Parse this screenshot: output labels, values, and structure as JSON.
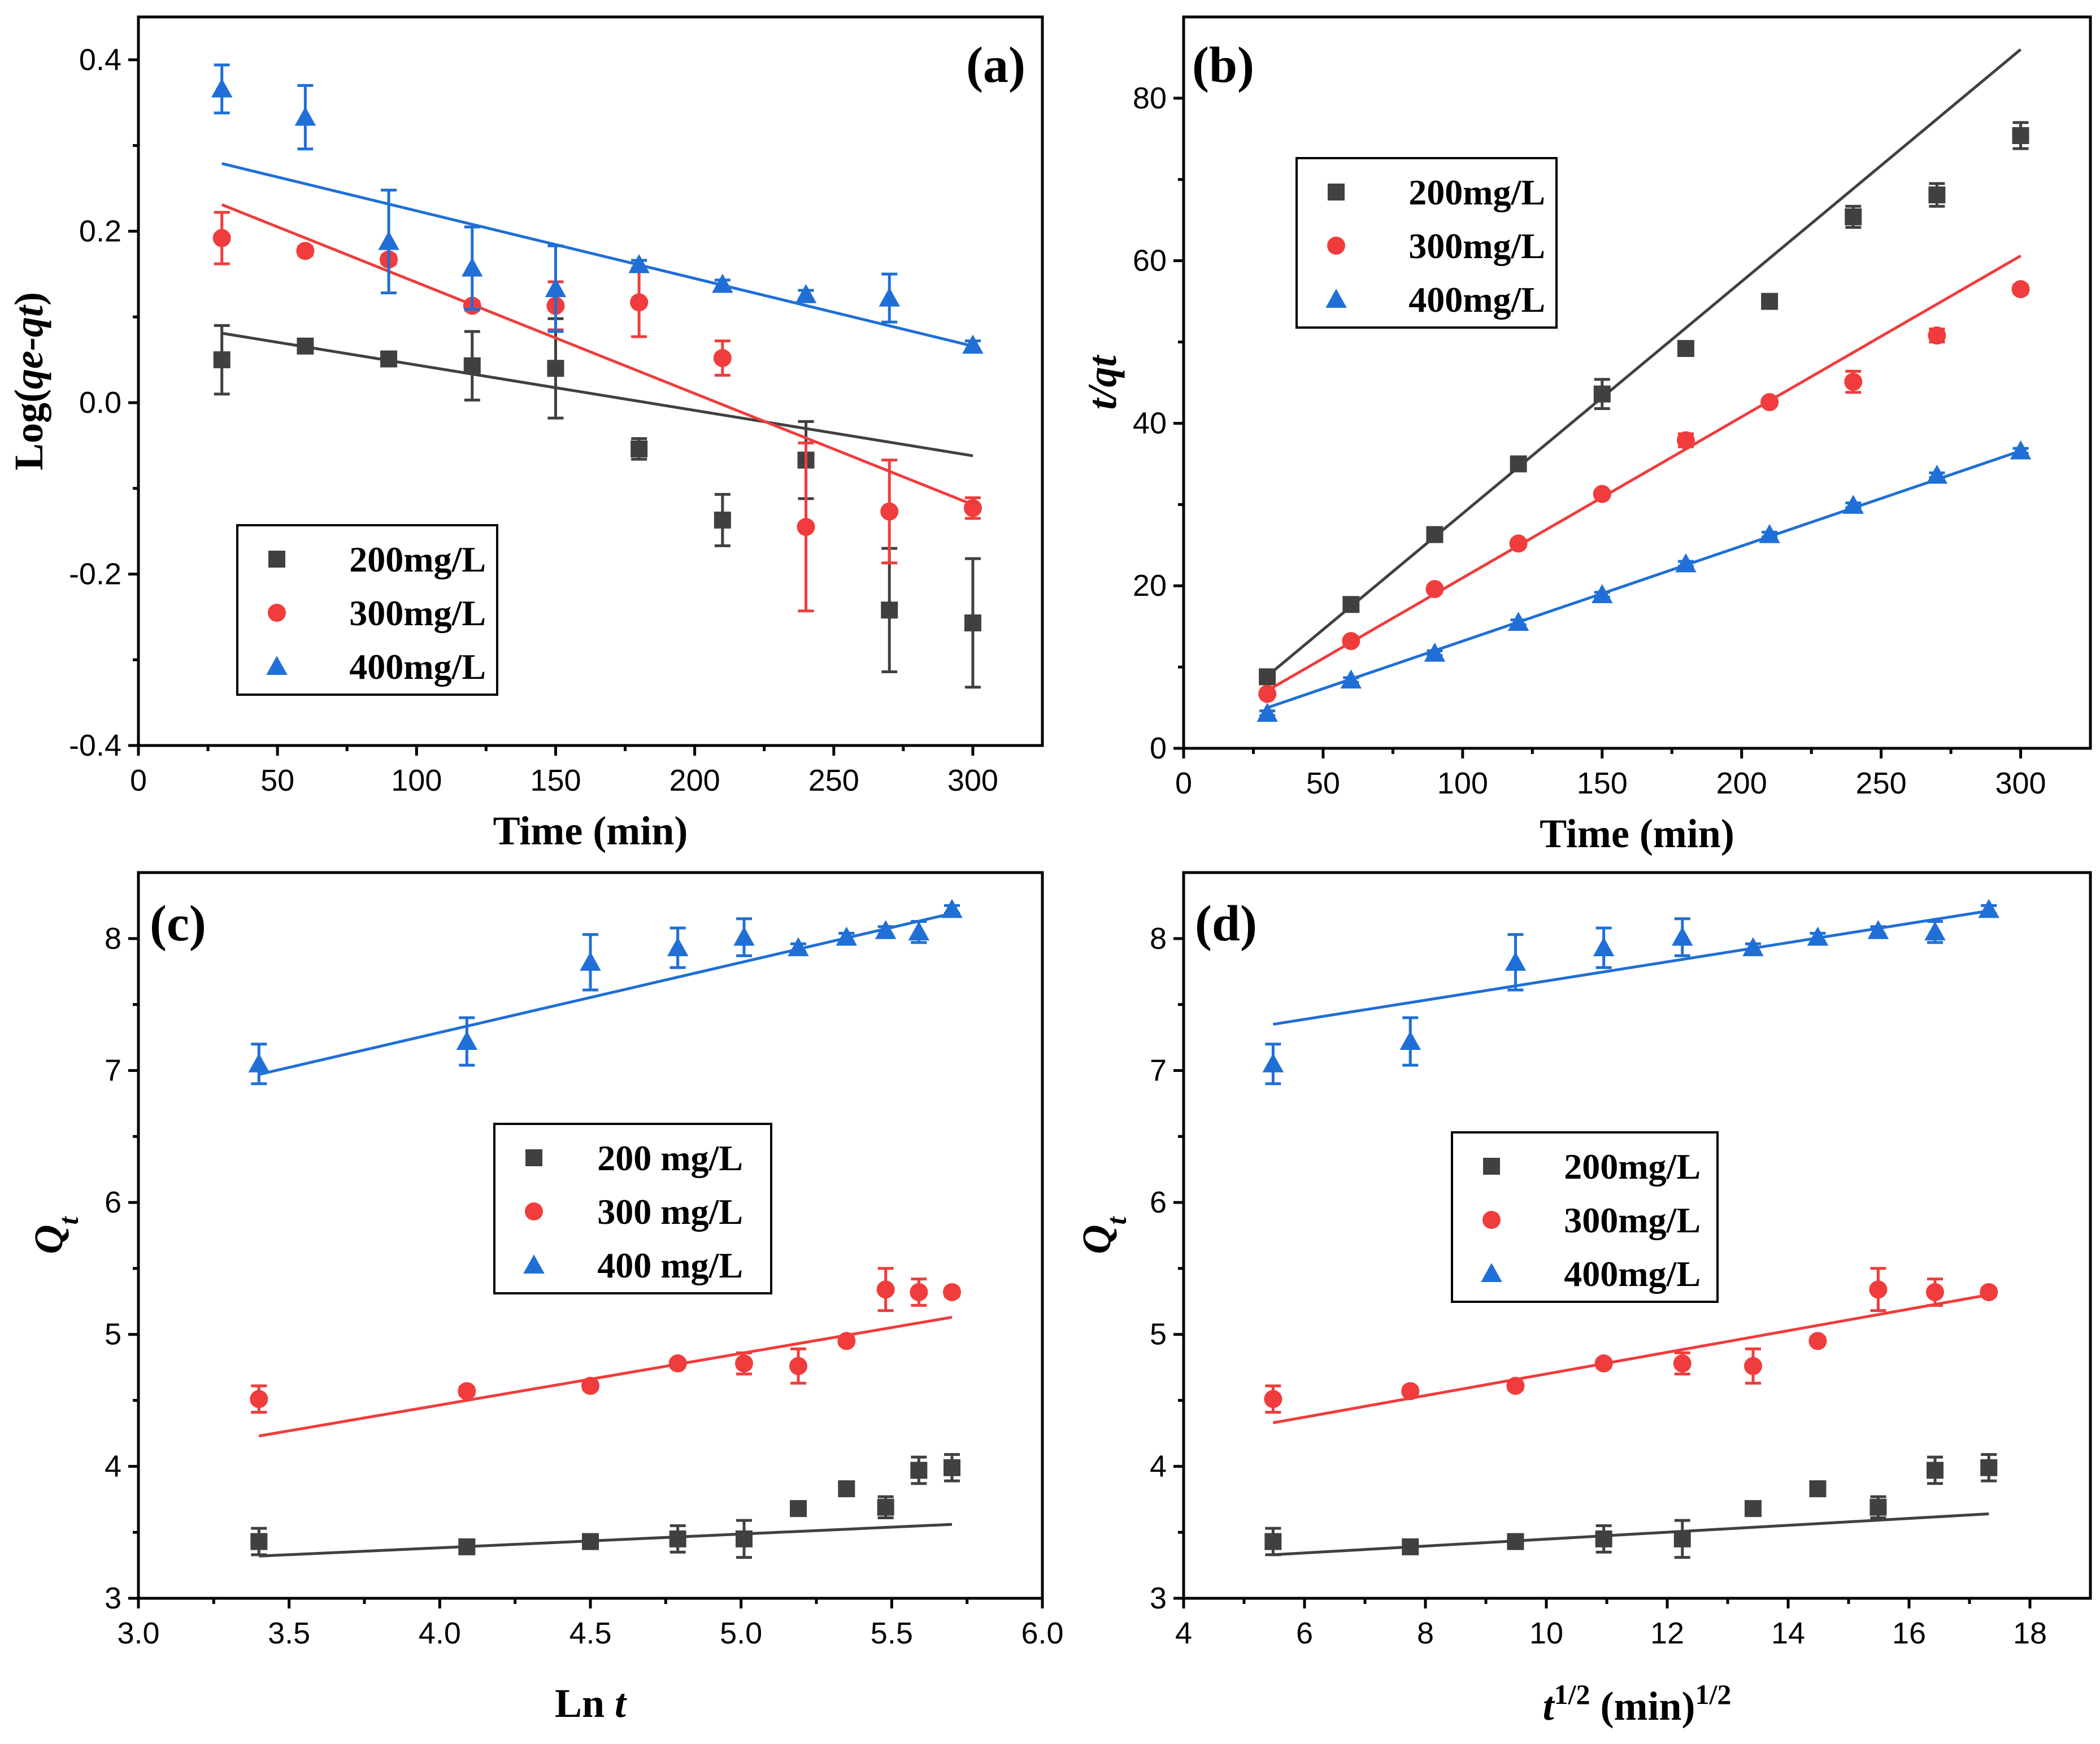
{
  "chart_data": [
    {
      "type": "scatter",
      "panel_label": "(a)",
      "xlabel": "Time (min)",
      "ylabel": "Log(qe-qt)",
      "ylabel_parts": [
        {
          "text": "Log(",
          "italic": false
        },
        {
          "text": "qe-qt",
          "italic": true
        },
        {
          "text": ")",
          "italic": false
        }
      ],
      "xlim": [
        0,
        325
      ],
      "ylim": [
        -0.4,
        0.45
      ],
      "xticks": [
        0,
        50,
        100,
        150,
        200,
        250,
        300
      ],
      "yticks": [
        -0.4,
        -0.2,
        0.0,
        0.2,
        0.4
      ],
      "xtick_labels": [
        "0",
        "50",
        "100",
        "150",
        "200",
        "250",
        "300"
      ],
      "ytick_labels": [
        "-0.4",
        "-0.2",
        "0.0",
        "0.2",
        "0.4"
      ],
      "legend_position": "lower-left",
      "series": [
        {
          "name": "200mg/L",
          "marker": "square",
          "color": "#404040",
          "x": [
            30,
            60,
            90,
            120,
            150,
            180,
            210,
            240,
            270,
            300
          ],
          "y": [
            0.05,
            0.066,
            0.051,
            0.043,
            0.04,
            -0.054,
            -0.137,
            -0.067,
            -0.242,
            -0.257
          ],
          "err": [
            0.04,
            0.005,
            0.005,
            0.04,
            0.058,
            0.012,
            0.03,
            0.045,
            0.072,
            0.075
          ],
          "fit": [
            [
              30,
              0.081
            ],
            [
              300,
              -0.062
            ]
          ]
        },
        {
          "name": "300mg/L",
          "marker": "circle",
          "color": "#f03c3c",
          "x": [
            30,
            60,
            90,
            120,
            150,
            180,
            210,
            240,
            270,
            300
          ],
          "y": [
            0.192,
            0.177,
            0.167,
            0.113,
            0.113,
            0.117,
            0.052,
            -0.145,
            -0.127,
            -0.123
          ],
          "err": [
            0.03,
            0.005,
            0.005,
            0.005,
            0.028,
            0.04,
            0.02,
            0.098,
            0.06,
            0.012
          ],
          "fit": [
            [
              30,
              0.231
            ],
            [
              300,
              -0.119
            ]
          ]
        },
        {
          "name": "400mg/L",
          "marker": "triangle",
          "color": "#1f6fd6",
          "x": [
            30,
            60,
            90,
            120,
            150,
            180,
            210,
            240,
            270,
            300
          ],
          "y": [
            0.366,
            0.333,
            0.188,
            0.157,
            0.133,
            0.161,
            0.138,
            0.126,
            0.122,
            0.067
          ],
          "err": [
            0.028,
            0.037,
            0.06,
            0.048,
            0.05,
            0.005,
            0.005,
            0.005,
            0.028,
            0.005
          ],
          "fit": [
            [
              30,
              0.279
            ],
            [
              300,
              0.066
            ]
          ]
        }
      ]
    },
    {
      "type": "scatter",
      "panel_label": "(b)",
      "xlabel": "Time (min)",
      "ylabel": "t/qt",
      "ylabel_parts": [
        {
          "text": "t/qt",
          "italic": true
        }
      ],
      "xlim": [
        0,
        325
      ],
      "ylim": [
        0,
        90
      ],
      "xticks": [
        0,
        50,
        100,
        150,
        200,
        250,
        300
      ],
      "yticks": [
        0,
        20,
        40,
        60,
        80
      ],
      "xtick_labels": [
        "0",
        "50",
        "100",
        "150",
        "200",
        "250",
        "300"
      ],
      "ytick_labels": [
        "0",
        "20",
        "40",
        "60",
        "80"
      ],
      "legend_position": "upper-left",
      "series": [
        {
          "name": "200mg/L",
          "marker": "square",
          "color": "#404040",
          "x": [
            30,
            60,
            90,
            120,
            150,
            180,
            210,
            240,
            270,
            300
          ],
          "y": [
            8.8,
            17.7,
            26.3,
            35.0,
            43.6,
            49.2,
            55.0,
            65.4,
            68.1,
            75.4
          ],
          "err": [
            0.4,
            0.4,
            0.4,
            0.6,
            1.8,
            0.5,
            0.4,
            1.3,
            1.4,
            1.6
          ],
          "fit": [
            [
              30,
              8.9
            ],
            [
              300,
              86.0
            ]
          ]
        },
        {
          "name": "300mg/L",
          "marker": "circle",
          "color": "#f03c3c",
          "x": [
            30,
            60,
            90,
            120,
            150,
            180,
            210,
            240,
            270,
            300
          ],
          "y": [
            6.7,
            13.2,
            19.6,
            25.2,
            31.3,
            37.9,
            42.6,
            45.1,
            50.8,
            56.5
          ],
          "err": [
            0.3,
            0.3,
            0.4,
            0.4,
            0.4,
            0.8,
            0.4,
            1.3,
            0.8,
            0.5
          ],
          "fit": [
            [
              30,
              7.1
            ],
            [
              300,
              60.6
            ]
          ]
        },
        {
          "name": "400mg/L",
          "marker": "triangle",
          "color": "#1f6fd6",
          "x": [
            30,
            60,
            90,
            120,
            150,
            180,
            210,
            240,
            270,
            300
          ],
          "y": [
            4.3,
            8.4,
            11.7,
            15.5,
            18.9,
            22.7,
            26.3,
            29.9,
            33.6,
            36.6
          ],
          "err": [
            0.3,
            0.3,
            0.3,
            0.3,
            0.3,
            0.3,
            0.3,
            0.3,
            0.3,
            0.3
          ],
          "fit": [
            [
              30,
              5.0
            ],
            [
              300,
              36.6
            ]
          ]
        }
      ]
    },
    {
      "type": "scatter",
      "panel_label": "(c)",
      "xlabel": "Ln t",
      "ylabel": "Qt",
      "xlabel_parts": [
        {
          "text": "Ln ",
          "italic": false
        },
        {
          "text": "t",
          "italic": true
        }
      ],
      "ylabel_parts": [
        {
          "text": "Q",
          "italic": true
        },
        {
          "text": "t",
          "italic": true,
          "sub": true
        }
      ],
      "xlim": [
        3.0,
        6.0
      ],
      "ylim": [
        3.0,
        8.5
      ],
      "xticks": [
        3.0,
        3.5,
        4.0,
        4.5,
        5.0,
        5.5,
        6.0
      ],
      "yticks": [
        3,
        4,
        5,
        6,
        7,
        8
      ],
      "xtick_labels": [
        "3.0",
        "3.5",
        "4.0",
        "4.5",
        "5.0",
        "5.5",
        "6.0"
      ],
      "ytick_labels": [
        "3",
        "4",
        "5",
        "6",
        "7",
        "8"
      ],
      "legend_position": "center",
      "series": [
        {
          "name": "200 mg/L",
          "marker": "square",
          "color": "#404040",
          "x": [
            3.4,
            4.09,
            4.5,
            4.79,
            5.01,
            5.19,
            5.35,
            5.48,
            5.59,
            5.7
          ],
          "y": [
            3.43,
            3.39,
            3.43,
            3.45,
            3.45,
            3.68,
            3.83,
            3.69,
            3.97,
            3.99
          ],
          "err": [
            0.1,
            0.03,
            0.03,
            0.1,
            0.14,
            0.03,
            0.03,
            0.08,
            0.1,
            0.1
          ],
          "fit": [
            [
              3.4,
              3.32
            ],
            [
              5.7,
              3.56
            ]
          ]
        },
        {
          "name": "300 mg/L",
          "marker": "circle",
          "color": "#f03c3c",
          "x": [
            3.4,
            4.09,
            4.5,
            4.79,
            5.01,
            5.19,
            5.35,
            5.48,
            5.59,
            5.7
          ],
          "y": [
            4.51,
            4.57,
            4.61,
            4.78,
            4.78,
            4.76,
            4.95,
            5.34,
            5.32,
            5.32
          ],
          "err": [
            0.1,
            0.03,
            0.03,
            0.03,
            0.08,
            0.13,
            0.03,
            0.16,
            0.1,
            0.03
          ],
          "fit": [
            [
              3.4,
              4.23
            ],
            [
              5.7,
              5.13
            ]
          ]
        },
        {
          "name": "400 mg/L",
          "marker": "triangle",
          "color": "#1f6fd6",
          "x": [
            3.4,
            4.09,
            4.5,
            4.79,
            5.01,
            5.19,
            5.35,
            5.48,
            5.59,
            5.7
          ],
          "y": [
            7.05,
            7.22,
            7.82,
            7.93,
            8.01,
            7.93,
            8.01,
            8.06,
            8.05,
            8.22
          ],
          "err": [
            0.15,
            0.18,
            0.21,
            0.15,
            0.14,
            0.03,
            0.03,
            0.03,
            0.08,
            0.03
          ],
          "fit": [
            [
              3.4,
              6.97
            ],
            [
              5.7,
              8.19
            ]
          ]
        }
      ]
    },
    {
      "type": "scatter",
      "panel_label": "(d)",
      "xlabel": "t1/2 (min)1/2",
      "ylabel": "Qt",
      "xlabel_parts": [
        {
          "text": "t",
          "italic": true
        },
        {
          "text": "1/2",
          "italic": false,
          "sup": true
        },
        {
          "text": " (min)",
          "italic": false
        },
        {
          "text": "1/2",
          "italic": false,
          "sup": true
        }
      ],
      "ylabel_parts": [
        {
          "text": "Q",
          "italic": true
        },
        {
          "text": "t",
          "italic": true,
          "sub": true
        }
      ],
      "xlim": [
        4,
        19
      ],
      "ylim": [
        3.0,
        8.5
      ],
      "xticks": [
        4,
        6,
        8,
        10,
        12,
        14,
        16,
        18
      ],
      "yticks": [
        3,
        4,
        5,
        6,
        7,
        8
      ],
      "xtick_labels": [
        "4",
        "6",
        "8",
        "10",
        "12",
        "14",
        "16",
        "18"
      ],
      "ytick_labels": [
        "3",
        "4",
        "5",
        "6",
        "7",
        "8"
      ],
      "legend_position": "center",
      "series": [
        {
          "name": "200mg/L",
          "marker": "square",
          "color": "#404040",
          "x": [
            5.48,
            7.75,
            9.49,
            10.95,
            12.25,
            13.42,
            14.49,
            15.49,
            16.43,
            17.32
          ],
          "y": [
            3.43,
            3.39,
            3.43,
            3.45,
            3.45,
            3.68,
            3.83,
            3.69,
            3.97,
            3.99
          ],
          "err": [
            0.1,
            0.03,
            0.03,
            0.1,
            0.14,
            0.03,
            0.03,
            0.08,
            0.1,
            0.1
          ],
          "fit": [
            [
              5.48,
              3.33
            ],
            [
              17.32,
              3.64
            ]
          ]
        },
        {
          "name": "300mg/L",
          "marker": "circle",
          "color": "#f03c3c",
          "x": [
            5.48,
            7.75,
            9.49,
            10.95,
            12.25,
            13.42,
            14.49,
            15.49,
            16.43,
            17.32
          ],
          "y": [
            4.51,
            4.57,
            4.61,
            4.78,
            4.78,
            4.76,
            4.95,
            5.34,
            5.32,
            5.32
          ],
          "err": [
            0.1,
            0.03,
            0.03,
            0.03,
            0.08,
            0.13,
            0.03,
            0.16,
            0.1,
            0.03
          ],
          "fit": [
            [
              5.48,
              4.33
            ],
            [
              17.32,
              5.3
            ]
          ]
        },
        {
          "name": "400mg/L",
          "marker": "triangle",
          "color": "#1f6fd6",
          "x": [
            5.48,
            7.75,
            9.49,
            10.95,
            12.25,
            13.42,
            14.49,
            15.49,
            16.43,
            17.32
          ],
          "y": [
            7.05,
            7.22,
            7.82,
            7.93,
            8.01,
            7.93,
            8.01,
            8.06,
            8.05,
            8.22
          ],
          "err": [
            0.15,
            0.18,
            0.21,
            0.15,
            0.14,
            0.03,
            0.03,
            0.03,
            0.08,
            0.03
          ],
          "fit": [
            [
              5.48,
              7.35
            ],
            [
              17.32,
              8.21
            ]
          ]
        }
      ]
    }
  ]
}
